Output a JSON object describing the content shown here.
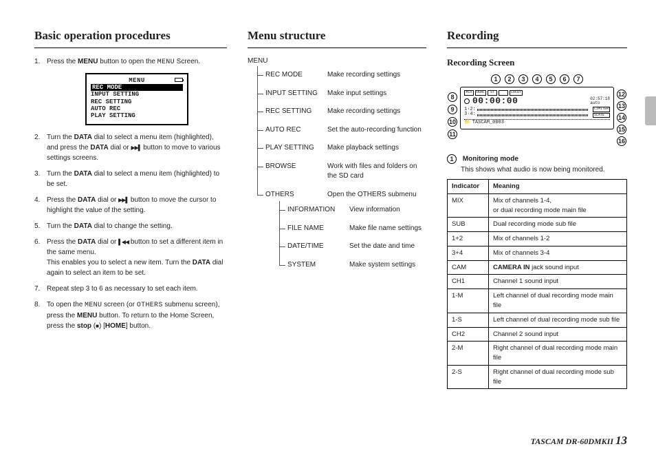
{
  "col1": {
    "heading": "Basic operation procedures",
    "steps": [
      {
        "n": "1.",
        "html": "Press the <b>MENU</b> button to open the <span class='lcd'>MENU</span> Screen."
      },
      {
        "n": "2.",
        "html": "Turn the <b>DATA</b> dial to select a menu item (highlighted), and press the <b>DATA</b> dial or <span class='icon-tri-right'></span> button to move to various settings screens."
      },
      {
        "n": "3.",
        "html": "Turn the <b>DATA</b> dial to select a menu item (highlighted) to be set."
      },
      {
        "n": "4.",
        "html": "Press the <b>DATA</b> dial or <span class='icon-tri-right'></span> button to move the cursor to highlight the value of the setting."
      },
      {
        "n": "5.",
        "html": "Turn the <b>DATA</b> dial to change the setting."
      },
      {
        "n": "6.",
        "html": "Press the <b>DATA</b> dial or <span class='icon-tri-left'></span> button to set a different item in the same menu.<br>This enables you to select a new item. Turn the <b>DATA</b> dial again to select an item to be set."
      },
      {
        "n": "7.",
        "html": "Repeat step 3 to 6 as necessary to set each item."
      },
      {
        "n": "8.",
        "html": "To open the <span class='lcd'>MENU</span> screen (or <span class='lcd'>OTHERS</span> submenu screen), press the <b>MENU</b> button. To return to the Home Screen, press the <b>stop</b> (<span class='icon-stop'></span>) [<b>HOME</b>] button."
      }
    ],
    "mini": {
      "title": "MENU",
      "items": [
        "REC MODE",
        "INPUT SETTING",
        "REC SETTING",
        "AUTO REC",
        "PLAY SETTING"
      ],
      "selected": 0
    }
  },
  "col2": {
    "heading": "Menu structure",
    "root": "MENU",
    "items": [
      {
        "lbl": "REC MODE",
        "desc": "Make recording settings"
      },
      {
        "lbl": "INPUT SETTING",
        "desc": "Make input settings"
      },
      {
        "lbl": "REC SETTING",
        "desc": "Make recording settings"
      },
      {
        "lbl": "AUTO REC",
        "desc": "Set the auto-recording function"
      },
      {
        "lbl": "PLAY SETTING",
        "desc": "Make playback settings"
      },
      {
        "lbl": "BROWSE",
        "desc": "Work with files and folders on the SD card"
      },
      {
        "lbl": "OTHERS",
        "desc": "Open the OTHERS submenu",
        "last": true
      }
    ],
    "sub": [
      {
        "lbl": "INFORMATION",
        "desc": "View information"
      },
      {
        "lbl": "FILE NAME",
        "desc": "Make file name settings"
      },
      {
        "lbl": "DATE/TIME",
        "desc": "Set the date and time"
      },
      {
        "lbl": "SYSTEM",
        "desc": "Make system settings",
        "last": true
      }
    ]
  },
  "col3": {
    "heading": "Recording",
    "sub": "Recording Screen",
    "callouts_top": [
      "1",
      "2",
      "3",
      "4",
      "5",
      "6",
      "7"
    ],
    "callouts_left": [
      "8",
      "9",
      "10",
      "11"
    ],
    "callouts_right": [
      "12",
      "13",
      "14",
      "15",
      "16"
    ],
    "lcd": {
      "top_badges": [
        "MIX",
        "DUAL",
        "ST",
        "",
        "LOCUT"
      ],
      "time": "00:00:00",
      "remain": "02:57:18",
      "level": "auto",
      "rows": [
        "1·2:",
        "3·4:"
      ],
      "badges_r": [
        "LIMITER",
        "SLATE"
      ],
      "file_line": "TASCAM_0003"
    },
    "def": {
      "n": "1",
      "title": "Monitoring mode",
      "text": "This shows what audio is now being monitored."
    },
    "table": {
      "headers": [
        "Indicator",
        "Meaning"
      ],
      "rows": [
        [
          "MIX",
          "Mix of channels 1-4,\nor dual recording mode main file"
        ],
        [
          "SUB",
          "Dual recording mode sub file"
        ],
        [
          "1+2",
          "Mix of channels 1-2"
        ],
        [
          "3+4",
          "Mix of channels 3-4"
        ],
        [
          "CAM",
          "<b>CAMERA IN</b> jack sound input"
        ],
        [
          "CH1",
          "Channel 1 sound input"
        ],
        [
          "1-M",
          "Left channel of dual recording mode main file"
        ],
        [
          "1-S",
          "Left channel of dual recording mode sub file"
        ],
        [
          "CH2",
          "Channel 2 sound input"
        ],
        [
          "2-M",
          "Right channel of dual recording mode main file"
        ],
        [
          "2-S",
          "Right channel of dual recording mode sub file"
        ]
      ]
    }
  },
  "footer": {
    "model": "TASCAM  DR-60DMKII",
    "page": "13"
  },
  "colors": {
    "rule": "#000000",
    "tree": "#555555",
    "tab": "#bbbbbb"
  }
}
